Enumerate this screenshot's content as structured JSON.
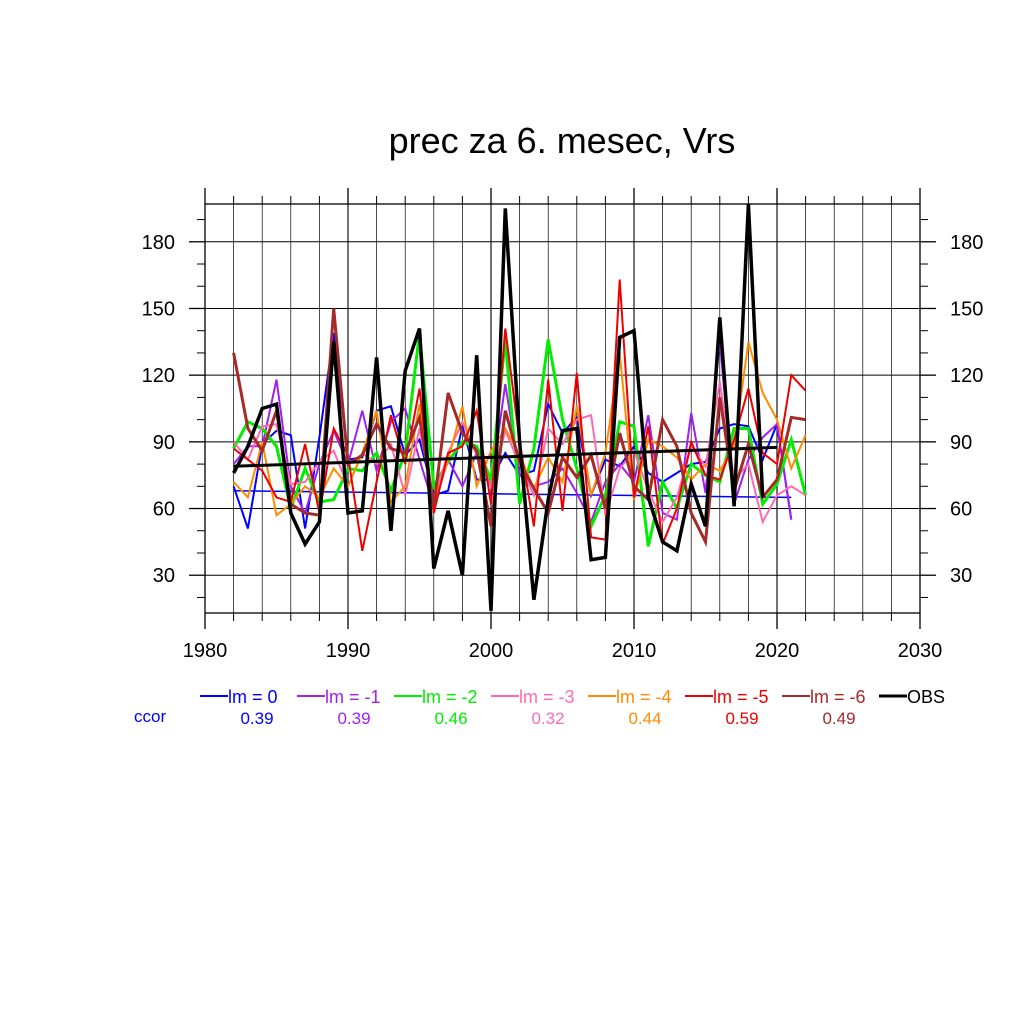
{
  "chart_data": {
    "type": "line",
    "title": "prec za 6. mesec, Vrs",
    "xlabel": "",
    "ylabel": "",
    "xlim": [
      1980,
      2030
    ],
    "ylim": [
      13,
      197
    ],
    "x_ticks": [
      1980,
      1990,
      2000,
      2010,
      2020,
      2030
    ],
    "y_ticks": [
      30,
      60,
      90,
      120,
      150,
      180
    ],
    "grid": true,
    "legend_position": "bottom",
    "corr_label": "ccor",
    "corr_color": "#0000ff",
    "series": [
      {
        "name": "lm = 0",
        "color": "#0000ff",
        "width": 2,
        "corr": "0.39",
        "x": [
          1982,
          1983,
          1984,
          1985,
          1986,
          1987,
          1988,
          1989,
          1990,
          1991,
          1992,
          1993,
          1994,
          1995,
          1996,
          1997,
          1998,
          1999,
          2000,
          2001,
          2002,
          2003,
          2004,
          2005,
          2006,
          2007,
          2008,
          2009,
          2010,
          2011,
          2012,
          2013,
          2014,
          2015,
          2016,
          2017,
          2018,
          2019,
          2020,
          2021
        ],
        "y": [
          70,
          51,
          89,
          95,
          93,
          51,
          92,
          139,
          82,
          83,
          104,
          106,
          84,
          91,
          66,
          68,
          97,
          73,
          73,
          85,
          75,
          77,
          107,
          94,
          101,
          66,
          82,
          79,
          88,
          76,
          72,
          76,
          80,
          81,
          96,
          98,
          97,
          82,
          98,
          55
        ],
        "trend": {
          "x": [
            1982,
            2021
          ],
          "y": [
            68,
            65
          ]
        }
      },
      {
        "name": "lm = -1",
        "color": "#a020f0",
        "width": 2,
        "corr": "0.39",
        "x": [
          1982,
          1983,
          1984,
          1985,
          1986,
          1987,
          1988,
          1989,
          1990,
          1991,
          1992,
          1993,
          1994,
          1995,
          1996,
          1997,
          1998,
          1999,
          2000,
          2001,
          2002,
          2003,
          2004,
          2005,
          2006,
          2007,
          2008,
          2009,
          2010,
          2011,
          2012,
          2013,
          2014,
          2015,
          2016,
          2017,
          2018,
          2019,
          2020,
          2021
        ],
        "y": [
          80,
          88,
          88,
          118,
          70,
          58,
          80,
          95,
          80,
          104,
          77,
          99,
          105,
          82,
          61,
          82,
          70,
          85,
          70,
          116,
          75,
          70,
          72,
          78,
          67,
          54,
          72,
          80,
          72,
          102,
          58,
          55,
          103,
          67,
          136,
          62,
          82,
          92,
          98,
          55
        ]
      },
      {
        "name": "lm = -2",
        "color": "#00ee00",
        "width": 3,
        "corr": "0.46",
        "x": [
          1982,
          1983,
          1984,
          1985,
          1986,
          1987,
          1988,
          1989,
          1990,
          1991,
          1992,
          1993,
          1994,
          1995,
          1996,
          1997,
          1998,
          1999,
          2000,
          2001,
          2002,
          2003,
          2004,
          2005,
          2006,
          2007,
          2008,
          2009,
          2010,
          2011,
          2012,
          2013,
          2014,
          2015,
          2016,
          2017,
          2018,
          2019,
          2020,
          2021,
          2022
        ],
        "y": [
          87,
          99,
          96,
          88,
          60,
          78,
          63,
          64,
          78,
          77,
          85,
          68,
          85,
          139,
          70,
          81,
          90,
          88,
          73,
          136,
          62,
          87,
          136,
          100,
          78,
          52,
          66,
          99,
          97,
          43,
          72,
          60,
          80,
          75,
          72,
          96,
          96,
          62,
          71,
          91,
          66
        ]
      },
      {
        "name": "lm = -3",
        "color": "#ff69b4",
        "width": 2,
        "corr": "0.32",
        "x": [
          1982,
          1983,
          1984,
          1985,
          1986,
          1987,
          1988,
          1989,
          1990,
          1991,
          1992,
          1993,
          1994,
          1995,
          1996,
          1997,
          1998,
          1999,
          2000,
          2001,
          2002,
          2003,
          2004,
          2005,
          2006,
          2007,
          2008,
          2009,
          2010,
          2011,
          2012,
          2013,
          2014,
          2015,
          2016,
          2017,
          2018,
          2019,
          2020,
          2021,
          2022
        ],
        "y": [
          90,
          82,
          97,
          98,
          71,
          72,
          81,
          86,
          70,
          85,
          80,
          89,
          66,
          96,
          64,
          85,
          99,
          84,
          70,
          95,
          80,
          66,
          96,
          89,
          100,
          102,
          57,
          78,
          86,
          68,
          54,
          65,
          88,
          79,
          117,
          73,
          80,
          54,
          66,
          70,
          66
        ]
      },
      {
        "name": "lm = -4",
        "color": "#ff8c00",
        "width": 2,
        "corr": "0.44",
        "x": [
          1982,
          1983,
          1984,
          1985,
          1986,
          1987,
          1988,
          1989,
          1990,
          1991,
          1992,
          1993,
          1994,
          1995,
          1996,
          1997,
          1998,
          1999,
          2000,
          2001,
          2002,
          2003,
          2004,
          2005,
          2006,
          2007,
          2008,
          2009,
          2010,
          2011,
          2012,
          2013,
          2014,
          2015,
          2016,
          2017,
          2018,
          2019,
          2020,
          2021,
          2022
        ],
        "y": [
          72,
          65,
          90,
          57,
          62,
          70,
          65,
          78,
          70,
          85,
          104,
          63,
          70,
          107,
          62,
          82,
          106,
          70,
          86,
          96,
          84,
          69,
          83,
          72,
          106,
          66,
          85,
          130,
          64,
          91,
          88,
          83,
          73,
          80,
          77,
          88,
          135,
          112,
          100,
          78,
          93
        ]
      },
      {
        "name": "lm = -5",
        "color": "#ee0000",
        "width": 2,
        "corr": "0.59",
        "x": [
          1982,
          1983,
          1984,
          1985,
          1986,
          1987,
          1988,
          1989,
          1990,
          1991,
          1992,
          1993,
          1994,
          1995,
          1996,
          1997,
          1998,
          1999,
          2000,
          2001,
          2002,
          2003,
          2004,
          2005,
          2006,
          2007,
          2008,
          2009,
          2010,
          2011,
          2012,
          2013,
          2014,
          2015,
          2016,
          2017,
          2018,
          2019,
          2020,
          2021,
          2022
        ],
        "y": [
          87,
          82,
          77,
          65,
          63,
          89,
          58,
          96,
          84,
          41,
          72,
          102,
          80,
          114,
          58,
          85,
          88,
          104,
          62,
          141,
          90,
          52,
          118,
          59,
          121,
          47,
          46,
          163,
          65,
          97,
          44,
          60,
          90,
          75,
          73,
          91,
          114,
          85,
          80,
          120,
          113
        ]
      },
      {
        "name": "lm = -6",
        "color": "#a52a2a",
        "width": 3,
        "corr": "0.49",
        "x": [
          1982,
          1983,
          1984,
          1985,
          1986,
          1987,
          1988,
          1989,
          1990,
          1991,
          1992,
          1993,
          1994,
          1995,
          1996,
          1997,
          1998,
          1999,
          2000,
          2001,
          2002,
          2003,
          2004,
          2005,
          2006,
          2007,
          2008,
          2009,
          2010,
          2011,
          2012,
          2013,
          2014,
          2015,
          2016,
          2017,
          2018,
          2019,
          2020,
          2021,
          2022
        ],
        "y": [
          130,
          96,
          86,
          104,
          62,
          58,
          57,
          150,
          80,
          84,
          98,
          87,
          85,
          101,
          61,
          112,
          94,
          86,
          52,
          104,
          81,
          69,
          58,
          83,
          74,
          84,
          60,
          94,
          70,
          64,
          100,
          88,
          58,
          45,
          110,
          68,
          89,
          65,
          73,
          101,
          100
        ]
      },
      {
        "name": "OBS",
        "color": "#000000",
        "width": 3.5,
        "corr": "",
        "x": [
          1982,
          1983,
          1984,
          1985,
          1986,
          1987,
          1988,
          1989,
          1990,
          1991,
          1992,
          1993,
          1994,
          1995,
          1996,
          1997,
          1998,
          1999,
          2000,
          2001,
          2002,
          2003,
          2004,
          2005,
          2006,
          2007,
          2008,
          2009,
          2010,
          2011,
          2012,
          2013,
          2014,
          2015,
          2016,
          2017,
          2018,
          2019
        ],
        "y": [
          76,
          88,
          105,
          107,
          58,
          44,
          54,
          135,
          58,
          59,
          128,
          50,
          122,
          141,
          33,
          59,
          30,
          129,
          14,
          195,
          90,
          19,
          64,
          95,
          96,
          37,
          38,
          137,
          140,
          65,
          45,
          41,
          71,
          52,
          146,
          61,
          197,
          65
        ],
        "trend": {
          "x": [
            1982,
            2020
          ],
          "y": [
            79,
            87.5
          ]
        }
      }
    ]
  }
}
